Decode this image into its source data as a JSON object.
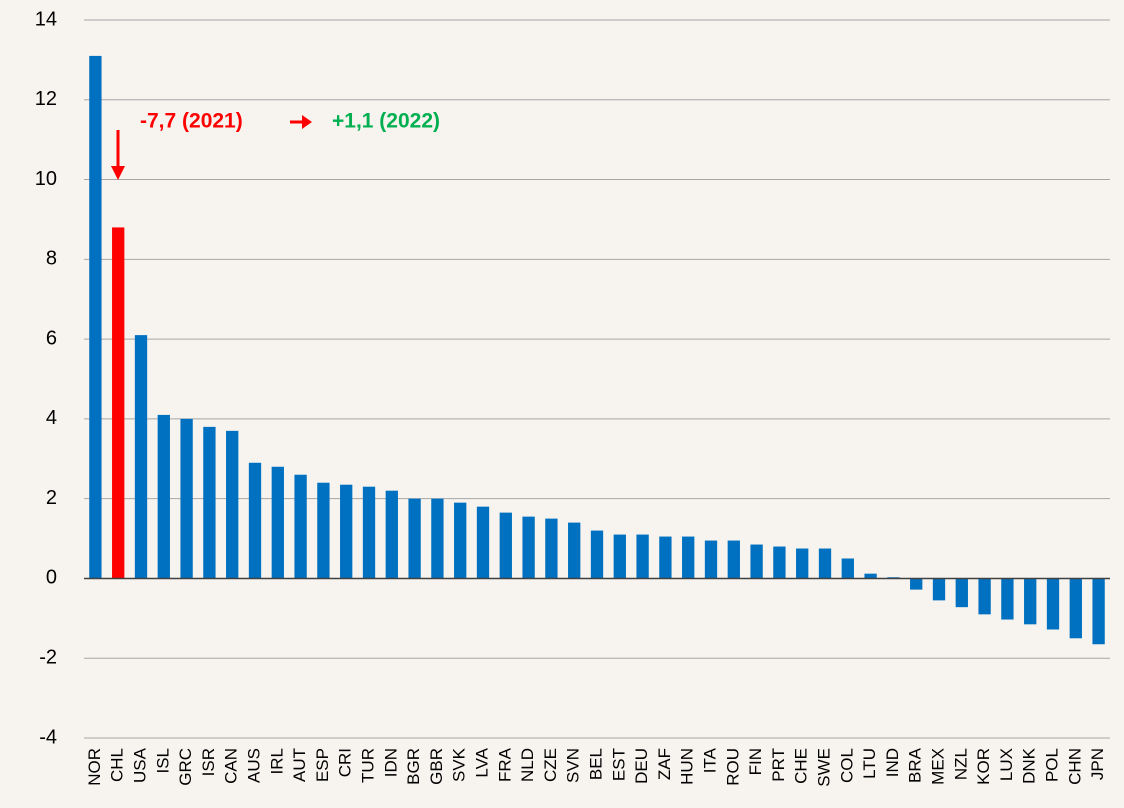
{
  "chart_data": {
    "type": "bar",
    "categories": [
      "NOR",
      "CHL",
      "USA",
      "ISL",
      "GRC",
      "ISR",
      "CAN",
      "AUS",
      "IRL",
      "AUT",
      "ESP",
      "CRI",
      "TUR",
      "IDN",
      "BGR",
      "GBR",
      "SVK",
      "LVA",
      "FRA",
      "NLD",
      "CZE",
      "SVN",
      "BEL",
      "EST",
      "DEU",
      "ZAF",
      "HUN",
      "ITA",
      "ROU",
      "FIN",
      "PRT",
      "CHE",
      "SWE",
      "COL",
      "LTU",
      "IND",
      "BRA",
      "MEX",
      "NZL",
      "KOR",
      "LUX",
      "DNK",
      "POL",
      "CHN",
      "JPN"
    ],
    "values": [
      13.1,
      8.8,
      6.1,
      4.1,
      4.0,
      3.8,
      3.7,
      2.9,
      2.8,
      2.6,
      2.4,
      2.35,
      2.3,
      2.2,
      2.0,
      2.0,
      1.9,
      1.8,
      1.65,
      1.55,
      1.5,
      1.4,
      1.2,
      1.1,
      1.1,
      1.05,
      1.05,
      0.95,
      0.95,
      0.85,
      0.8,
      0.75,
      0.75,
      0.5,
      0.12,
      0.03,
      -0.28,
      -0.55,
      -0.72,
      -0.9,
      -1.03,
      -1.15,
      -1.28,
      -1.5,
      -1.65
    ],
    "color": "#0070c0",
    "highlight": {
      "index": 1,
      "color": "#ff0000"
    },
    "ylim": [
      -4,
      14
    ],
    "yticks": [
      -4,
      -2,
      0,
      2,
      4,
      6,
      8,
      10,
      12,
      14
    ],
    "grid": true,
    "annotations": [
      {
        "text": "-7,7 (2021)",
        "color": "#ff0000"
      },
      {
        "text": "+1,1 (2022)",
        "color": "#00b050"
      }
    ]
  }
}
